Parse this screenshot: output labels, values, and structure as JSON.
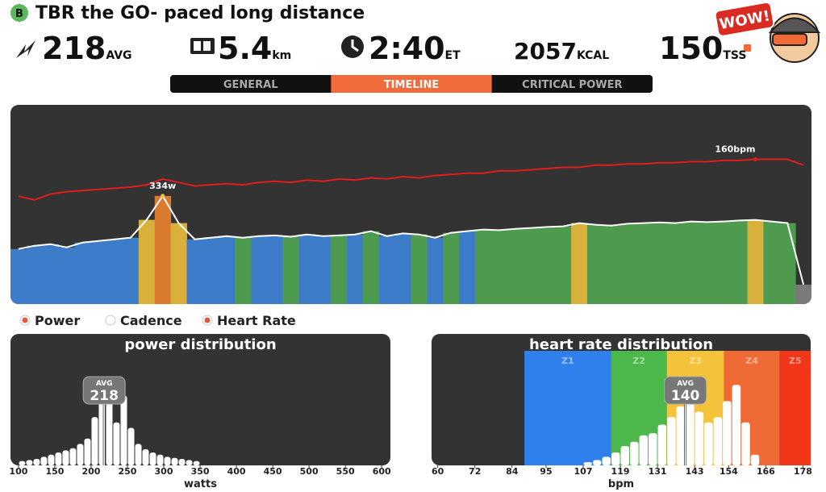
{
  "header": {
    "badge_letter": "B",
    "title": "TBR the GO- paced long distance",
    "wow": "WOW!"
  },
  "stats": [
    {
      "value": 218,
      "unit": "AVG"
    },
    {
      "value": 5.4,
      "unit": "km"
    },
    {
      "value": "2:40",
      "unit": "ET"
    },
    {
      "value": 2057,
      "unit": "KCAL"
    },
    {
      "value": 150,
      "unit": "TSS"
    }
  ],
  "tabs": [
    "GENERAL",
    "TIMELINE",
    "CRITICAL POWER"
  ],
  "active_tab": 1,
  "chart_data": [
    {
      "type": "timeline",
      "ylim": [
        0,
        615
      ],
      "y2lim": [
        35,
        207
      ],
      "series": [
        {
          "name": "Power",
          "color": "#ffffff",
          "legend_color": "#e8553c",
          "checked": true,
          "peak_label": "334w",
          "values": [
            170,
            180,
            185,
            175,
            190,
            195,
            200,
            205,
            260,
            334,
            250,
            200,
            205,
            210,
            205,
            210,
            212,
            208,
            215,
            210,
            212,
            215,
            225,
            210,
            218,
            215,
            205,
            220,
            225,
            230,
            228,
            232,
            235,
            238,
            240,
            250,
            245,
            242,
            248,
            250,
            252,
            250,
            255,
            253,
            255,
            258,
            260,
            255,
            250,
            60
          ],
          "zone_colors": [
            "#3d7cc9",
            "#3d7cc9",
            "#3d7cc9",
            "#3d7cc9",
            "#3d7cc9",
            "#3d7cc9",
            "#3d7cc9",
            "#3d7cc9",
            "#d9b03a",
            "#d97a2e",
            "#d9b03a",
            "#3d7cc9",
            "#3d7cc9",
            "#3d7cc9",
            "#4e9a4e",
            "#3d7cc9",
            "#3d7cc9",
            "#4e9a4e",
            "#3d7cc9",
            "#3d7cc9",
            "#4e9a4e",
            "#3d7cc9",
            "#4e9a4e",
            "#3d7cc9",
            "#3d7cc9",
            "#4e9a4e",
            "#3d7cc9",
            "#4e9a4e",
            "#3d7cc9",
            "#4e9a4e",
            "#4e9a4e",
            "#4e9a4e",
            "#4e9a4e",
            "#4e9a4e",
            "#4e9a4e",
            "#d9b03a",
            "#4e9a4e",
            "#4e9a4e",
            "#4e9a4e",
            "#4e9a4e",
            "#4e9a4e",
            "#4e9a4e",
            "#4e9a4e",
            "#4e9a4e",
            "#4e9a4e",
            "#4e9a4e",
            "#d9b03a",
            "#4e9a4e",
            "#4e9a4e",
            "#7a7a7a"
          ]
        },
        {
          "name": "Cadence",
          "color": "#ffffff",
          "legend_color": "#ffffff",
          "checked": false,
          "values": []
        },
        {
          "name": "Heart Rate",
          "color": "#e01c1c",
          "legend_color": "#e8553c",
          "checked": true,
          "axis": "y2",
          "peak_label": "160bpm",
          "values": [
            128,
            125,
            130,
            132,
            133,
            134,
            135,
            136,
            138,
            143,
            140,
            137,
            138,
            139,
            138,
            140,
            141,
            140,
            142,
            141,
            143,
            142,
            144,
            143,
            145,
            144,
            146,
            147,
            148,
            148,
            150,
            150,
            151,
            152,
            153,
            153,
            155,
            155,
            156,
            156,
            157,
            157,
            158,
            158,
            159,
            159,
            160,
            160,
            160,
            155
          ]
        }
      ]
    },
    {
      "type": "histogram",
      "title": "power distribution",
      "xlabel": "watts",
      "color": "#ffffff",
      "bins": [
        100,
        110,
        120,
        130,
        140,
        150,
        160,
        170,
        180,
        190,
        200,
        210,
        220,
        230,
        240,
        250,
        260,
        270,
        280,
        290,
        300,
        310,
        320,
        330,
        340,
        350
      ],
      "counts": [
        4,
        5,
        6,
        8,
        10,
        12,
        14,
        16,
        20,
        25,
        45,
        70,
        75,
        40,
        65,
        35,
        20,
        15,
        12,
        10,
        8,
        7,
        6,
        5,
        4
      ],
      "xlim": [
        89,
        612
      ],
      "xticks": [
        100,
        150,
        200,
        250,
        300,
        350,
        400,
        450,
        500,
        550,
        600
      ],
      "ylim": [
        0,
        100
      ],
      "marker": {
        "label": "AVG",
        "value": 218
      }
    },
    {
      "type": "histogram",
      "title": "heart rate distribution",
      "xlabel": "bpm",
      "color": "#ffffff",
      "bins": [
        107,
        110,
        113,
        116,
        119,
        122,
        125,
        128,
        131,
        134,
        137,
        140,
        143,
        146,
        149,
        152,
        155,
        158,
        161,
        164
      ],
      "counts": [
        3,
        5,
        8,
        12,
        18,
        22,
        28,
        30,
        38,
        45,
        55,
        65,
        50,
        40,
        45,
        60,
        75,
        40,
        10
      ],
      "xlim": [
        58,
        180.5
      ],
      "xticks": [
        60,
        72,
        84,
        95,
        107,
        119,
        131,
        143,
        154,
        166,
        178
      ],
      "ylim": [
        0,
        100
      ],
      "marker": {
        "label": "AVG",
        "value": 140
      },
      "zones": [
        {
          "name": "Z1",
          "from": 88,
          "to": 116,
          "color": "#2f80ed"
        },
        {
          "name": "Z2",
          "from": 116,
          "to": 134,
          "color": "#4cb84c"
        },
        {
          "name": "Z3",
          "from": 134,
          "to": 152.5,
          "color": "#f5c33b"
        },
        {
          "name": "Z4",
          "from": 152.5,
          "to": 170.5,
          "color": "#f06a35"
        },
        {
          "name": "Z5",
          "from": 170.5,
          "to": 180.5,
          "color": "#f2361a"
        }
      ]
    }
  ]
}
